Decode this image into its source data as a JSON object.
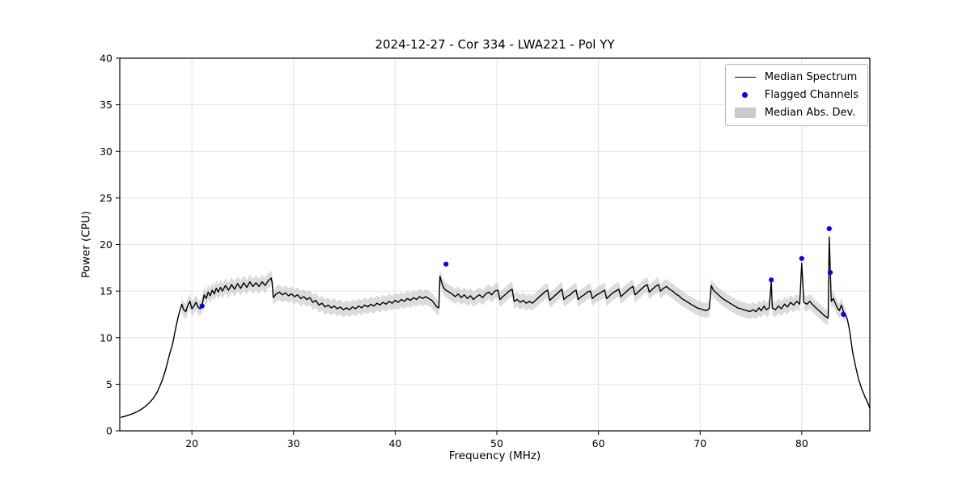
{
  "chart_data": {
    "type": "line",
    "title": "2024-12-27 - Cor 334 - LWA221 - Pol YY",
    "xlabel": "Frequency (MHz)",
    "ylabel": "Power (CPU)",
    "xlim": [
      12.9,
      86.7
    ],
    "ylim": [
      0,
      40
    ],
    "xticks": [
      20,
      30,
      40,
      50,
      60,
      70,
      80
    ],
    "yticks": [
      0,
      5,
      10,
      15,
      20,
      25,
      30,
      35,
      40
    ],
    "grid": true,
    "grid_color": "#e4e4e4",
    "frame_color": "#000000",
    "legend": {
      "position": "upper right",
      "items": [
        {
          "label": "Median Spectrum",
          "type": "line",
          "color": "#000000"
        },
        {
          "label": "Flagged Channels",
          "type": "dot",
          "color": "#0000ff"
        },
        {
          "label": "Median Abs. Dev.",
          "type": "band",
          "color": "#c9c9c9"
        }
      ]
    },
    "series": [
      {
        "name": "Median Spectrum",
        "type": "line",
        "color": "#000000",
        "points": [
          [
            13.0,
            1.45
          ],
          [
            13.4,
            1.55
          ],
          [
            13.8,
            1.7
          ],
          [
            14.2,
            1.85
          ],
          [
            14.6,
            2.05
          ],
          [
            15.0,
            2.3
          ],
          [
            15.4,
            2.6
          ],
          [
            15.8,
            3.0
          ],
          [
            16.2,
            3.5
          ],
          [
            16.6,
            4.2
          ],
          [
            17.0,
            5.2
          ],
          [
            17.4,
            6.5
          ],
          [
            17.8,
            8.2
          ],
          [
            18.1,
            9.3
          ],
          [
            18.4,
            11.0
          ],
          [
            18.7,
            12.5
          ],
          [
            18.9,
            13.2
          ],
          [
            19.0,
            13.6
          ],
          [
            19.2,
            13.0
          ],
          [
            19.4,
            12.8
          ],
          [
            19.6,
            13.5
          ],
          [
            19.8,
            13.9
          ],
          [
            20.0,
            13.1
          ],
          [
            20.2,
            13.4
          ],
          [
            20.4,
            13.8
          ],
          [
            20.6,
            13.3
          ],
          [
            20.8,
            13.1
          ],
          [
            21.0,
            13.5
          ],
          [
            21.2,
            14.6
          ],
          [
            21.4,
            14.2
          ],
          [
            21.6,
            14.9
          ],
          [
            21.8,
            14.5
          ],
          [
            22.0,
            15.1
          ],
          [
            22.2,
            14.7
          ],
          [
            22.4,
            15.3
          ],
          [
            22.6,
            14.9
          ],
          [
            22.8,
            15.4
          ],
          [
            23.0,
            15.0
          ],
          [
            23.3,
            15.6
          ],
          [
            23.6,
            15.1
          ],
          [
            23.9,
            15.7
          ],
          [
            24.2,
            15.2
          ],
          [
            24.5,
            15.8
          ],
          [
            24.8,
            15.3
          ],
          [
            25.1,
            15.9
          ],
          [
            25.4,
            15.4
          ],
          [
            25.7,
            16.0
          ],
          [
            26.0,
            15.5
          ],
          [
            26.3,
            15.9
          ],
          [
            26.6,
            15.5
          ],
          [
            26.9,
            16.0
          ],
          [
            27.2,
            15.6
          ],
          [
            27.5,
            16.1
          ],
          [
            27.8,
            16.4
          ],
          [
            27.9,
            15.9
          ],
          [
            28.0,
            14.3
          ],
          [
            28.3,
            14.7
          ],
          [
            28.6,
            14.9
          ],
          [
            28.9,
            14.6
          ],
          [
            29.2,
            14.8
          ],
          [
            29.5,
            14.5
          ],
          [
            29.8,
            14.7
          ],
          [
            30.1,
            14.4
          ],
          [
            30.4,
            14.6
          ],
          [
            30.7,
            14.2
          ],
          [
            31.0,
            14.4
          ],
          [
            31.3,
            14.1
          ],
          [
            31.6,
            14.3
          ],
          [
            31.9,
            13.8
          ],
          [
            32.2,
            14.0
          ],
          [
            32.5,
            13.5
          ],
          [
            32.8,
            13.7
          ],
          [
            33.1,
            13.3
          ],
          [
            33.4,
            13.5
          ],
          [
            33.7,
            13.2
          ],
          [
            34.0,
            13.4
          ],
          [
            34.3,
            13.1
          ],
          [
            34.6,
            13.3
          ],
          [
            34.9,
            13.0
          ],
          [
            35.2,
            13.2
          ],
          [
            35.5,
            13.0
          ],
          [
            35.8,
            13.3
          ],
          [
            36.1,
            13.1
          ],
          [
            36.4,
            13.4
          ],
          [
            36.7,
            13.2
          ],
          [
            37.0,
            13.5
          ],
          [
            37.3,
            13.3
          ],
          [
            37.6,
            13.6
          ],
          [
            37.9,
            13.4
          ],
          [
            38.2,
            13.7
          ],
          [
            38.5,
            13.5
          ],
          [
            38.8,
            13.8
          ],
          [
            39.1,
            13.6
          ],
          [
            39.4,
            13.9
          ],
          [
            39.7,
            13.7
          ],
          [
            40.0,
            14.0
          ],
          [
            40.3,
            13.8
          ],
          [
            40.6,
            14.1
          ],
          [
            40.9,
            13.9
          ],
          [
            41.2,
            14.2
          ],
          [
            41.5,
            14.0
          ],
          [
            41.8,
            14.3
          ],
          [
            42.1,
            14.1
          ],
          [
            42.4,
            14.4
          ],
          [
            42.7,
            14.2
          ],
          [
            43.0,
            14.4
          ],
          [
            43.3,
            14.2
          ],
          [
            43.6,
            14.0
          ],
          [
            43.9,
            13.6
          ],
          [
            44.1,
            13.3
          ],
          [
            44.3,
            13.2
          ],
          [
            44.4,
            16.6
          ],
          [
            44.6,
            15.8
          ],
          [
            44.8,
            15.3
          ],
          [
            45.0,
            15.1
          ],
          [
            45.3,
            14.9
          ],
          [
            45.6,
            14.7
          ],
          [
            45.9,
            14.4
          ],
          [
            46.2,
            14.7
          ],
          [
            46.5,
            14.3
          ],
          [
            46.8,
            14.6
          ],
          [
            47.1,
            14.2
          ],
          [
            47.4,
            14.5
          ],
          [
            47.7,
            14.1
          ],
          [
            48.0,
            14.4
          ],
          [
            48.3,
            14.6
          ],
          [
            48.6,
            14.3
          ],
          [
            48.9,
            14.7
          ],
          [
            49.2,
            14.9
          ],
          [
            49.5,
            14.6
          ],
          [
            49.8,
            15.0
          ],
          [
            50.1,
            15.1
          ],
          [
            50.3,
            14.1
          ],
          [
            50.6,
            14.4
          ],
          [
            50.9,
            14.7
          ],
          [
            51.2,
            15.0
          ],
          [
            51.5,
            15.2
          ],
          [
            51.7,
            13.9
          ],
          [
            52.0,
            14.1
          ],
          [
            52.3,
            13.8
          ],
          [
            52.6,
            14.0
          ],
          [
            52.9,
            13.7
          ],
          [
            53.2,
            13.9
          ],
          [
            53.5,
            13.7
          ],
          [
            53.8,
            14.0
          ],
          [
            54.1,
            14.3
          ],
          [
            54.4,
            14.6
          ],
          [
            54.7,
            14.9
          ],
          [
            55.0,
            15.1
          ],
          [
            55.2,
            14.0
          ],
          [
            55.5,
            14.3
          ],
          [
            55.8,
            14.6
          ],
          [
            56.1,
            14.9
          ],
          [
            56.4,
            15.2
          ],
          [
            56.6,
            14.1
          ],
          [
            56.9,
            14.4
          ],
          [
            57.2,
            14.6
          ],
          [
            57.5,
            14.9
          ],
          [
            57.8,
            15.1
          ],
          [
            58.0,
            14.1
          ],
          [
            58.3,
            14.4
          ],
          [
            58.6,
            14.6
          ],
          [
            58.9,
            14.9
          ],
          [
            59.2,
            15.0
          ],
          [
            59.4,
            14.2
          ],
          [
            59.7,
            14.5
          ],
          [
            60.0,
            14.7
          ],
          [
            60.3,
            14.9
          ],
          [
            60.6,
            15.1
          ],
          [
            60.8,
            14.2
          ],
          [
            61.1,
            14.5
          ],
          [
            61.4,
            14.8
          ],
          [
            61.7,
            15.0
          ],
          [
            62.0,
            15.2
          ],
          [
            62.2,
            14.4
          ],
          [
            62.5,
            14.7
          ],
          [
            62.8,
            15.0
          ],
          [
            63.1,
            15.3
          ],
          [
            63.4,
            15.5
          ],
          [
            63.6,
            14.6
          ],
          [
            63.9,
            14.9
          ],
          [
            64.2,
            15.2
          ],
          [
            64.5,
            15.5
          ],
          [
            64.8,
            15.7
          ],
          [
            65.0,
            14.9
          ],
          [
            65.3,
            15.2
          ],
          [
            65.6,
            15.5
          ],
          [
            65.9,
            15.7
          ],
          [
            66.1,
            15.0
          ],
          [
            66.4,
            15.3
          ],
          [
            66.7,
            15.5
          ],
          [
            67.0,
            15.2
          ],
          [
            67.3,
            15.0
          ],
          [
            67.6,
            14.7
          ],
          [
            67.9,
            14.5
          ],
          [
            68.2,
            14.2
          ],
          [
            68.5,
            14.0
          ],
          [
            68.8,
            13.8
          ],
          [
            69.1,
            13.6
          ],
          [
            69.4,
            13.4
          ],
          [
            69.7,
            13.2
          ],
          [
            70.0,
            13.1
          ],
          [
            70.3,
            13.0
          ],
          [
            70.6,
            12.9
          ],
          [
            70.9,
            13.1
          ],
          [
            71.1,
            15.6
          ],
          [
            71.3,
            15.1
          ],
          [
            71.6,
            14.8
          ],
          [
            71.9,
            14.5
          ],
          [
            72.2,
            14.2
          ],
          [
            72.5,
            14.0
          ],
          [
            72.8,
            13.8
          ],
          [
            73.1,
            13.6
          ],
          [
            73.4,
            13.4
          ],
          [
            73.7,
            13.2
          ],
          [
            74.0,
            13.1
          ],
          [
            74.3,
            13.0
          ],
          [
            74.6,
            12.9
          ],
          [
            74.9,
            12.8
          ],
          [
            75.2,
            13.0
          ],
          [
            75.5,
            12.8
          ],
          [
            75.8,
            13.2
          ],
          [
            76.0,
            12.9
          ],
          [
            76.3,
            13.4
          ],
          [
            76.5,
            13.0
          ],
          [
            76.8,
            13.2
          ],
          [
            77.0,
            16.0
          ],
          [
            77.1,
            13.2
          ],
          [
            77.4,
            13.0
          ],
          [
            77.7,
            13.4
          ],
          [
            78.0,
            13.1
          ],
          [
            78.3,
            13.6
          ],
          [
            78.6,
            13.3
          ],
          [
            78.9,
            13.8
          ],
          [
            79.2,
            13.5
          ],
          [
            79.5,
            13.9
          ],
          [
            79.8,
            13.6
          ],
          [
            80.0,
            18.0
          ],
          [
            80.2,
            13.8
          ],
          [
            80.5,
            13.6
          ],
          [
            80.8,
            13.9
          ],
          [
            81.1,
            13.5
          ],
          [
            81.4,
            13.2
          ],
          [
            81.7,
            12.9
          ],
          [
            82.0,
            12.6
          ],
          [
            82.3,
            12.3
          ],
          [
            82.6,
            12.1
          ],
          [
            82.7,
            20.8
          ],
          [
            82.9,
            13.9
          ],
          [
            83.1,
            14.2
          ],
          [
            83.3,
            13.7
          ],
          [
            83.5,
            13.2
          ],
          [
            83.7,
            12.9
          ],
          [
            83.9,
            13.5
          ],
          [
            84.1,
            12.8
          ],
          [
            84.3,
            12.5
          ],
          [
            84.5,
            11.9
          ],
          [
            84.7,
            10.8
          ],
          [
            85.0,
            8.5
          ],
          [
            85.3,
            6.9
          ],
          [
            85.6,
            5.5
          ],
          [
            85.9,
            4.5
          ],
          [
            86.2,
            3.7
          ],
          [
            86.5,
            3.0
          ],
          [
            86.7,
            2.4
          ]
        ]
      },
      {
        "name": "Flagged Channels",
        "type": "scatter",
        "color": "#0000ff",
        "points": [
          [
            21.0,
            13.4
          ],
          [
            45.0,
            17.9
          ],
          [
            77.0,
            16.2
          ],
          [
            80.0,
            18.5
          ],
          [
            82.7,
            21.7
          ],
          [
            82.8,
            17.0
          ],
          [
            84.1,
            12.5
          ]
        ]
      },
      {
        "name": "Median Abs. Dev.",
        "type": "band",
        "color": "#bfbfbf",
        "opacity": 0.55,
        "follows": "Median Spectrum",
        "half_width": 0.8,
        "freq_start": 19.0,
        "freq_end": 84.4
      }
    ]
  }
}
